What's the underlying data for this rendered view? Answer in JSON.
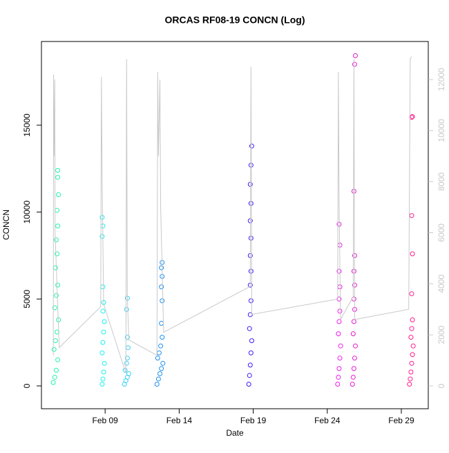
{
  "chart_data": {
    "type": "scatter",
    "title": "ORCAS RF08-19 CONCN (Log)",
    "xlabel": "Date",
    "ylabel": "CONCN",
    "xlim": [
      4.7,
      30.82
    ],
    "xticks": [
      {
        "value": 9,
        "label": "Feb 09"
      },
      {
        "value": 14,
        "label": "Feb 14"
      },
      {
        "value": 19,
        "label": "Feb 19"
      },
      {
        "value": 24,
        "label": "Feb 24"
      },
      {
        "value": 29,
        "label": "Feb 29"
      }
    ],
    "ylim": [
      -1313,
      19815
    ],
    "yticks": [
      0,
      5000,
      10000,
      15000
    ],
    "y2lim": [
      -894,
      13489
    ],
    "y2ticks": [
      0,
      2000,
      4000,
      6000,
      8000,
      10000,
      12000
    ],
    "series": [
      {
        "color": "#1ef5b0",
        "x": [
          5.5,
          5.6,
          5.7,
          5.8,
          5.55,
          5.65,
          5.75,
          5.85,
          5.6,
          5.7,
          5.8,
          5.65,
          5.75,
          5.7,
          5.8,
          5.75,
          5.85,
          5.8,
          5.8
        ],
        "values": [
          200,
          500,
          900,
          1500,
          2100,
          2600,
          3100,
          3800,
          4500,
          5200,
          5800,
          6800,
          7600,
          8400,
          9200,
          10100,
          11000,
          12000,
          12400
        ]
      },
      {
        "color": "#1af0f0",
        "x": [
          8.8,
          8.85,
          8.9,
          8.95,
          8.8,
          8.85,
          8.9,
          8.95,
          8.85,
          8.9,
          8.85,
          8.8,
          8.85,
          8.8
        ],
        "values": [
          100,
          400,
          800,
          1300,
          1900,
          2500,
          3100,
          3700,
          4300,
          4800,
          5700,
          8600,
          9200,
          9700
        ]
      },
      {
        "color": "#33d0f5",
        "x": [
          10.3,
          10.4,
          10.5,
          10.6,
          10.35,
          10.45,
          10.5,
          10.55,
          10.5,
          10.45,
          10.5
        ],
        "values": [
          100,
          300,
          500,
          700,
          900,
          1300,
          1600,
          2200,
          2800,
          4400,
          5050
        ]
      },
      {
        "color": "#1a8ef0",
        "x": [
          12.5,
          12.6,
          12.7,
          12.8,
          12.9,
          12.55,
          12.65,
          12.75,
          12.85,
          12.8,
          12.85,
          12.8,
          12.85,
          12.8,
          12.85
        ],
        "values": [
          100,
          400,
          700,
          1000,
          1300,
          1600,
          1900,
          2300,
          2800,
          3600,
          4900,
          5700,
          6300,
          6800,
          7100
        ]
      },
      {
        "color": "#3a1aff",
        "x": [
          18.7,
          18.75,
          18.8,
          18.85,
          18.9,
          18.75,
          18.8,
          18.85,
          18.8,
          18.85,
          18.8,
          18.85,
          18.8,
          18.85,
          18.8,
          18.85,
          18.9
        ],
        "values": [
          100,
          600,
          1200,
          1900,
          2600,
          3300,
          4100,
          4900,
          5800,
          6600,
          7500,
          8500,
          9500,
          10500,
          11600,
          12700,
          13800
        ]
      },
      {
        "color": "#ee1aee",
        "x": [
          24.7,
          24.75,
          24.8,
          24.85,
          24.9,
          24.75,
          24.8,
          24.85,
          24.8,
          24.85,
          24.8,
          24.85,
          24.8
        ],
        "values": [
          100,
          500,
          1000,
          1600,
          2300,
          3000,
          3700,
          4300,
          5000,
          5700,
          6600,
          8100,
          9300
        ]
      },
      {
        "color": "#e41ad0",
        "x": [
          25.7,
          25.75,
          25.8,
          25.85,
          25.9,
          25.75,
          25.8,
          25.85,
          25.8,
          25.85,
          25.8,
          25.85,
          25.8,
          25.85,
          25.9
        ],
        "values": [
          100,
          500,
          1000,
          1600,
          2300,
          3000,
          3700,
          4400,
          5000,
          5800,
          6600,
          7500,
          11200,
          18500,
          19000
        ]
      },
      {
        "color": "#ff1a8c",
        "x": [
          29.55,
          29.6,
          29.65,
          29.7,
          29.75,
          29.8,
          29.65,
          29.7,
          29.75,
          29.7,
          29.75,
          29.7,
          29.75,
          29.7
        ],
        "values": [
          100,
          400,
          800,
          1300,
          1800,
          2300,
          2800,
          3300,
          3800,
          5300,
          7600,
          9800,
          15500,
          15450
        ]
      },
      {
        "color": "#c8c8c8",
        "axis": "y2",
        "x": [
          5.5,
          5.52,
          5.55,
          5.6,
          5.62,
          5.9,
          8.7,
          8.75,
          8.8,
          8.9,
          10.4,
          10.45,
          10.5,
          10.6,
          12.5,
          12.55,
          12.6,
          12.7,
          12.75,
          12.95,
          18.8,
          18.85,
          18.9,
          24.7,
          24.75,
          24.8,
          24.9,
          25.75,
          25.8,
          25.85,
          29.5,
          29.6,
          29.7
        ],
        "values": [
          1200,
          12200,
          9000,
          12000,
          6000,
          1500,
          3100,
          12100,
          8000,
          3200,
          500,
          12800,
          3500,
          1800,
          1200,
          12300,
          9000,
          12000,
          7000,
          2100,
          3900,
          12500,
          2800,
          3400,
          12300,
          7000,
          2600,
          3500,
          12800,
          2600,
          3000,
          12800,
          12900
        ]
      }
    ]
  }
}
